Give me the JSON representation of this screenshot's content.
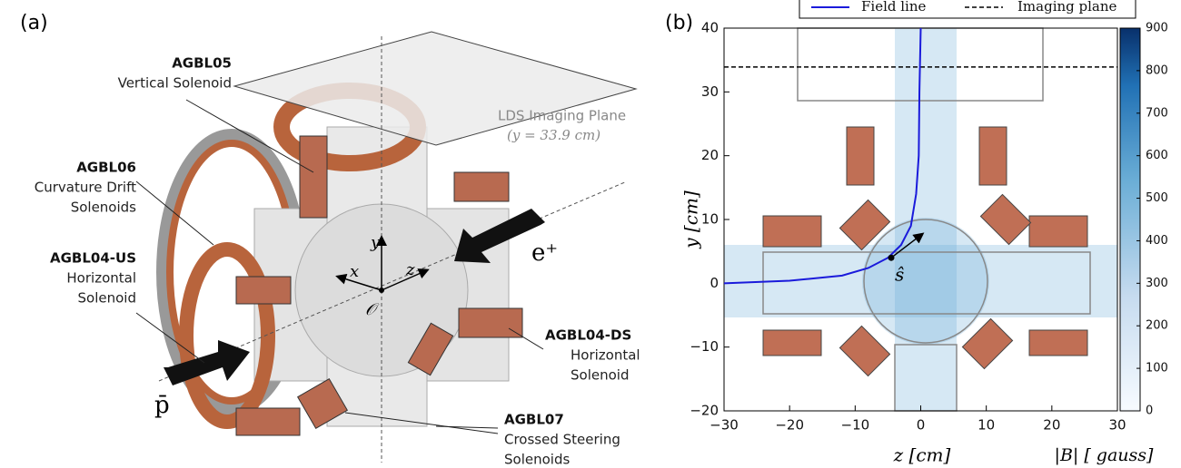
{
  "panel_a": {
    "label": "(a)",
    "imaging_plane": {
      "title": "LDS Imaging Plane",
      "subtitle": "(y = 33.9 cm)"
    },
    "annotations": [
      {
        "title": "AGBL05",
        "lines": [
          "Vertical Solenoid"
        ]
      },
      {
        "title": "AGBL06",
        "lines": [
          "Curvature Drift",
          "Solenoids"
        ]
      },
      {
        "title": "AGBL04-US",
        "lines": [
          "Horizontal",
          "Solenoid"
        ]
      },
      {
        "title": "AGBL04-DS",
        "lines": [
          "Horizontal",
          "Solenoid"
        ]
      },
      {
        "title": "AGBL07",
        "lines": [
          "Crossed Steering",
          "Solenoids"
        ]
      }
    ],
    "axes": {
      "y": "y",
      "x": "x",
      "z": "z",
      "origin": "𝒪"
    },
    "beams": {
      "positron": "e⁺",
      "antiproton": "p̄"
    }
  },
  "chart_data": {
    "type": "vector-field",
    "panel_label": "(b)",
    "xlabel": "z [cm]",
    "ylabel": "y [cm]",
    "xlim": [
      -30,
      30
    ],
    "ylim": [
      -20,
      40
    ],
    "xticks": [
      {
        "value": -30,
        "label": "−30"
      },
      {
        "value": -20,
        "label": "−20"
      },
      {
        "value": -10,
        "label": "−10"
      },
      0,
      10,
      20,
      30
    ],
    "yticks": [
      {
        "value": -20,
        "label": "−20"
      },
      {
        "value": -10,
        "label": "−10"
      },
      0,
      10,
      20,
      30,
      40
    ],
    "series": [
      {
        "name": "Field line",
        "color": "#1a1adb",
        "x": [
          -30,
          -20,
          -12,
          -8,
          -5,
          -3,
          -1.5,
          -0.7,
          -0.3,
          -0.2,
          0
        ],
        "y": [
          0,
          0.4,
          1.2,
          2.4,
          4,
          6,
          9,
          14,
          20,
          30,
          40
        ]
      }
    ],
    "imaging_plane": {
      "name": "Imaging plane",
      "y": 33.9,
      "color": "#000000"
    },
    "direction_marker": {
      "label": "ŝ",
      "z": -4.5,
      "y": 4
    },
    "colorbar": {
      "label": "|B| [ gauss]",
      "lim": [
        0,
        900
      ],
      "ticks": [
        0,
        100,
        200,
        300,
        400,
        500,
        600,
        700,
        800,
        900
      ]
    }
  }
}
